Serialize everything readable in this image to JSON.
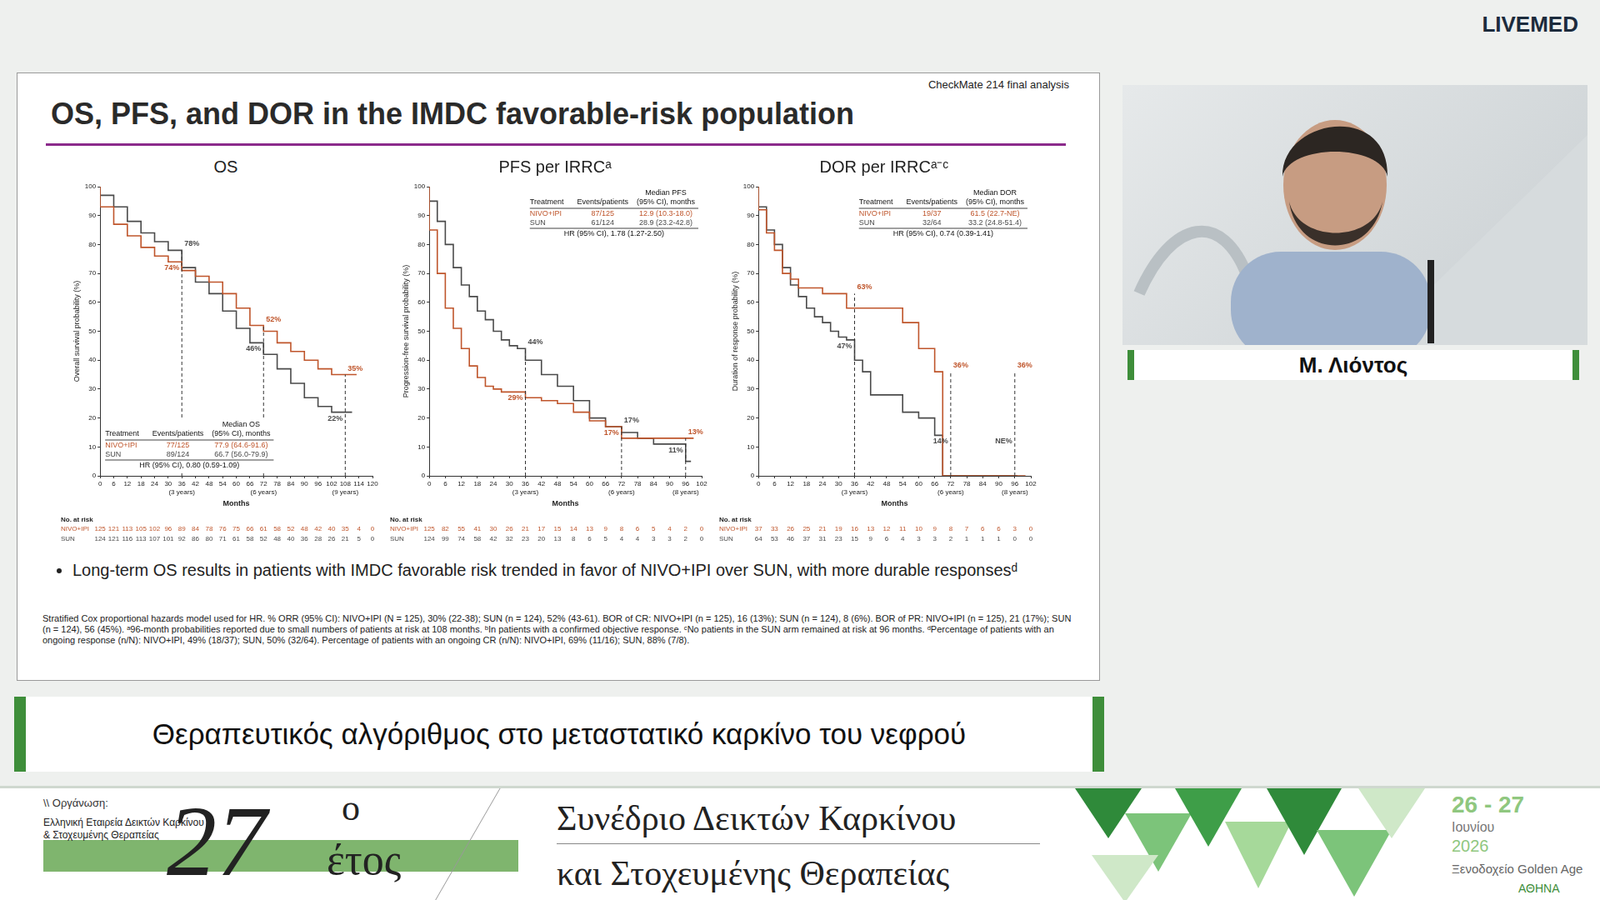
{
  "header": {
    "brand": "LIVEMED"
  },
  "slide": {
    "corner": "CheckMate 214 final analysis",
    "title": "OS, PFS, and DOR in the IMDC favorable-risk population",
    "bullet": "Long-term OS results in patients with IMDC favorable risk trended in favor of NIVO+IPI over SUN, with more durable responsesᵈ",
    "footnote": "Stratified Cox proportional hazards model used for HR. % ORR (95% CI): NIVO+IPI (N = 125), 30% (22-38); SUN (n = 124), 52% (43-61). BOR of CR: NIVO+IPI (n = 125), 16 (13%); SUN (n = 124), 8 (6%). BOR of PR: NIVO+IPI (n = 125), 21 (17%); SUN (n = 124), 56 (45%). ᵃ96-month probabilities reported due to small numbers of patients at risk at 108 months. ᵇIn patients with a confirmed objective response. ᶜNo patients in the SUN arm remained at risk at 96 months. ᵈPercentage of patients with an ongoing response (n/N): NIVO+IPI, 49% (18/37); SUN, 50% (32/64). Percentage of patients with an ongoing CR (n/N): NIVO+IPI, 69% (11/16); SUN, 88% (7/8)."
  },
  "chart_data": [
    {
      "type": "step",
      "title": "OS",
      "xlabel": "Months",
      "ylabel": "Overall survival probability (%)",
      "xlim": [
        0,
        120
      ],
      "xticks": [
        0,
        6,
        12,
        18,
        24,
        30,
        {
          "value": 36,
          "label": "36\n(3 years)"
        },
        42,
        48,
        54,
        60,
        66,
        {
          "value": 72,
          "label": "72\n(6 years)"
        },
        78,
        84,
        90,
        96,
        102,
        {
          "value": 108,
          "label": "108\n(9 years)"
        },
        114,
        120
      ],
      "ylim": [
        0,
        100
      ],
      "yticks": [
        0,
        10,
        20,
        30,
        40,
        50,
        60,
        70,
        80,
        90,
        100
      ],
      "grid": false,
      "legend": "lower left",
      "inset_header": [
        "Treatment",
        "Events/patients",
        "Median OS\n(95% CI), months"
      ],
      "hr": "HR (95% CI), 0.80 (0.59-1.09)",
      "at_risk_title": "No. at risk",
      "series": [
        {
          "name": "NIVO+IPI",
          "color": "#bf552b",
          "events_patients": "77/125",
          "median": "77.9 (64.6-91.6)",
          "x": [
            0,
            6,
            12,
            18,
            24,
            30,
            36,
            42,
            48,
            54,
            60,
            66,
            72,
            78,
            84,
            90,
            96,
            102,
            108,
            113
          ],
          "values": [
            100,
            93,
            87,
            83,
            79,
            76,
            74,
            71,
            69,
            67,
            63,
            58,
            52,
            50,
            46,
            43,
            40,
            37,
            35,
            35
          ],
          "at_risk": [
            125,
            121,
            113,
            105,
            102,
            96,
            89,
            84,
            78,
            76,
            75,
            66,
            61,
            58,
            52,
            48,
            42,
            40,
            35,
            4,
            0
          ]
        },
        {
          "name": "SUN",
          "color": "#4a4a4a",
          "events_patients": "89/124",
          "median": "66.7 (56.0-79.9)",
          "x": [
            0,
            6,
            12,
            18,
            24,
            30,
            36,
            42,
            48,
            54,
            60,
            66,
            72,
            78,
            84,
            90,
            96,
            102,
            108,
            111
          ],
          "values": [
            100,
            97,
            93,
            88,
            84,
            81,
            78,
            72,
            67,
            63,
            57,
            51,
            46,
            42,
            37,
            32,
            27,
            24,
            22,
            22
          ],
          "at_risk": [
            124,
            121,
            116,
            113,
            107,
            101,
            92,
            86,
            80,
            71,
            61,
            58,
            52,
            48,
            40,
            36,
            28,
            26,
            21,
            5,
            0
          ]
        }
      ],
      "annotations": [
        {
          "x": 36,
          "y": 78,
          "series": "SUN",
          "text": "78%"
        },
        {
          "x": 36,
          "y": 74,
          "series": "NIVO+IPI",
          "text": "74%"
        },
        {
          "x": 72,
          "y": 52,
          "series": "NIVO+IPI",
          "text": "52%"
        },
        {
          "x": 72,
          "y": 46,
          "series": "SUN",
          "text": "46%"
        },
        {
          "x": 108,
          "y": 35,
          "series": "NIVO+IPI",
          "text": "35%"
        },
        {
          "x": 108,
          "y": 22,
          "series": "SUN",
          "text": "22%"
        }
      ]
    },
    {
      "type": "step",
      "title": "PFS per IRRCᵃ",
      "xlabel": "Months",
      "ylabel": "Progression-free survival probability (%)",
      "xlim": [
        0,
        102
      ],
      "xticks": [
        0,
        6,
        12,
        18,
        24,
        30,
        {
          "value": 36,
          "label": "36\n(3 years)"
        },
        42,
        48,
        54,
        60,
        66,
        {
          "value": 72,
          "label": "72\n(6 years)"
        },
        78,
        84,
        90,
        {
          "value": 96,
          "label": "96\n(8 years)"
        },
        102
      ],
      "ylim": [
        0,
        100
      ],
      "yticks": [
        0,
        10,
        20,
        30,
        40,
        50,
        60,
        70,
        80,
        90,
        100
      ],
      "grid": false,
      "legend": "upper right",
      "inset_header": [
        "Treatment",
        "Events/patients",
        "Median PFS\n(95% CI), months"
      ],
      "hr": "HR (95% CI), 1.78 (1.27-2.50)",
      "at_risk_title": "No. at risk",
      "series": [
        {
          "name": "NIVO+IPI",
          "color": "#bf552b",
          "events_patients": "87/125",
          "median": "12.9 (10.3-18.0)",
          "x": [
            0,
            3,
            6,
            9,
            12,
            15,
            18,
            21,
            24,
            27,
            30,
            36,
            42,
            48,
            54,
            60,
            66,
            72,
            96,
            99
          ],
          "values": [
            100,
            85,
            70,
            58,
            51,
            44,
            38,
            34,
            31,
            30,
            29,
            29,
            27,
            26,
            25,
            22,
            19,
            17,
            13,
            13
          ],
          "at_risk": [
            125,
            82,
            55,
            41,
            30,
            26,
            21,
            17,
            15,
            14,
            13,
            9,
            8,
            6,
            5,
            4,
            2,
            0
          ]
        },
        {
          "name": "SUN",
          "color": "#4a4a4a",
          "events_patients": "61/124",
          "median": "28.9 (23.2-42.8)",
          "x": [
            0,
            3,
            6,
            9,
            12,
            15,
            18,
            21,
            24,
            27,
            30,
            33,
            36,
            42,
            48,
            54,
            60,
            66,
            72,
            78,
            84,
            96,
            98
          ],
          "values": [
            100,
            95,
            88,
            80,
            72,
            66,
            62,
            57,
            54,
            50,
            47,
            45,
            44,
            40,
            35,
            31,
            26,
            20,
            17,
            15,
            13,
            11,
            5
          ],
          "at_risk": [
            124,
            99,
            74,
            58,
            42,
            32,
            23,
            20,
            13,
            8,
            6,
            5,
            4,
            4,
            3,
            3,
            2,
            0
          ]
        }
      ],
      "annotations": [
        {
          "x": 36,
          "y": 44,
          "series": "SUN",
          "text": "44%"
        },
        {
          "x": 36,
          "y": 29,
          "series": "NIVO+IPI",
          "text": "29%"
        },
        {
          "x": 72,
          "y": 17,
          "series": "SUN",
          "text": "17%"
        },
        {
          "x": 72,
          "y": 17,
          "series": "NIVO+IPI",
          "text": "17%"
        },
        {
          "x": 96,
          "y": 13,
          "series": "NIVO+IPI",
          "text": "13%"
        },
        {
          "x": 96,
          "y": 11,
          "series": "SUN",
          "text": "11%"
        }
      ]
    },
    {
      "type": "step",
      "title": "DOR per IRRCᵃ⁻ᶜ",
      "xlabel": "Months",
      "ylabel": "Duration of response probability (%)",
      "xlim": [
        0,
        102
      ],
      "xticks": [
        0,
        6,
        12,
        18,
        24,
        30,
        {
          "value": 36,
          "label": "36\n(3 years)"
        },
        42,
        48,
        54,
        60,
        66,
        {
          "value": 72,
          "label": "72\n(6 years)"
        },
        78,
        84,
        90,
        {
          "value": 96,
          "label": "96\n(8 years)"
        },
        102
      ],
      "ylim": [
        0,
        100
      ],
      "yticks": [
        0,
        10,
        20,
        30,
        40,
        50,
        60,
        70,
        80,
        90,
        100
      ],
      "grid": false,
      "legend": "upper right",
      "inset_header": [
        "Treatment",
        "Events/patients",
        "Median DOR\n(95% CI), months"
      ],
      "hr": "HR (95% CI), 0.74 (0.39-1.41)",
      "at_risk_title": "No. at risk",
      "series": [
        {
          "name": "NIVO+IPI",
          "color": "#bf552b",
          "events_patients": "19/37",
          "median": "61.5 (22.7-NE)",
          "x": [
            0,
            3,
            6,
            9,
            12,
            15,
            24,
            33,
            54,
            60,
            66,
            69,
            97,
            100
          ],
          "values": [
            100,
            92,
            84,
            78,
            70,
            68,
            65,
            63,
            58,
            53,
            44,
            36,
            0,
            0
          ],
          "at_risk": [
            37,
            33,
            26,
            25,
            21,
            19,
            16,
            13,
            12,
            11,
            10,
            9,
            8,
            7,
            6,
            6,
            3,
            0
          ]
        },
        {
          "name": "SUN",
          "color": "#4a4a4a",
          "events_patients": "32/64",
          "median": "33.2 (24.8-51.4)",
          "x": [
            0,
            3,
            6,
            9,
            12,
            15,
            18,
            21,
            24,
            27,
            30,
            33,
            36,
            39,
            42,
            54,
            60,
            66,
            69,
            97
          ],
          "values": [
            100,
            93,
            85,
            80,
            72,
            66,
            62,
            58,
            55,
            53,
            50,
            48,
            47,
            40,
            36,
            28,
            22,
            20,
            14,
            0
          ],
          "at_risk": [
            64,
            53,
            46,
            37,
            31,
            23,
            15,
            9,
            6,
            4,
            3,
            3,
            2,
            1,
            1,
            1,
            0,
            0
          ]
        }
      ],
      "annotations": [
        {
          "x": 36,
          "y": 63,
          "series": "NIVO+IPI",
          "text": "63%"
        },
        {
          "x": 36,
          "y": 47,
          "series": "SUN",
          "text": "47%"
        },
        {
          "x": 72,
          "y": 36,
          "series": "NIVO+IPI",
          "text": "36%"
        },
        {
          "x": 72,
          "y": 14,
          "series": "SUN",
          "text": "14%"
        },
        {
          "x": 96,
          "y": 36,
          "series": "NIVO+IPI",
          "text": "36%"
        },
        {
          "x": 96,
          "series": "SUN",
          "text": "NE%"
        }
      ]
    }
  ],
  "speaker": {
    "name": "Μ. Λιόντος"
  },
  "talk_title": "Θεραπευτικός αλγόριθμος στο μεταστατικό καρκίνο του νεφρού",
  "banner": {
    "organizer_label": "\\\\ Οργάνωση:",
    "organizer": [
      "Ελληνική Εταιρεία Δεικτών Καρκίνου",
      "& Στοχευμένης Θεραπείας"
    ],
    "edition": "27",
    "edition_sup": "ο",
    "edition_word": "έτος",
    "event": [
      "Συνέδριο Δεικτών Καρκίνου",
      "και Στοχευμένης Θεραπείας"
    ],
    "dates": "26 - 27",
    "month": "Ιουνίου",
    "year": "2026",
    "venue": "Ξενοδοχείο Golden Age",
    "city": "ΑΘΗΝΑ"
  }
}
